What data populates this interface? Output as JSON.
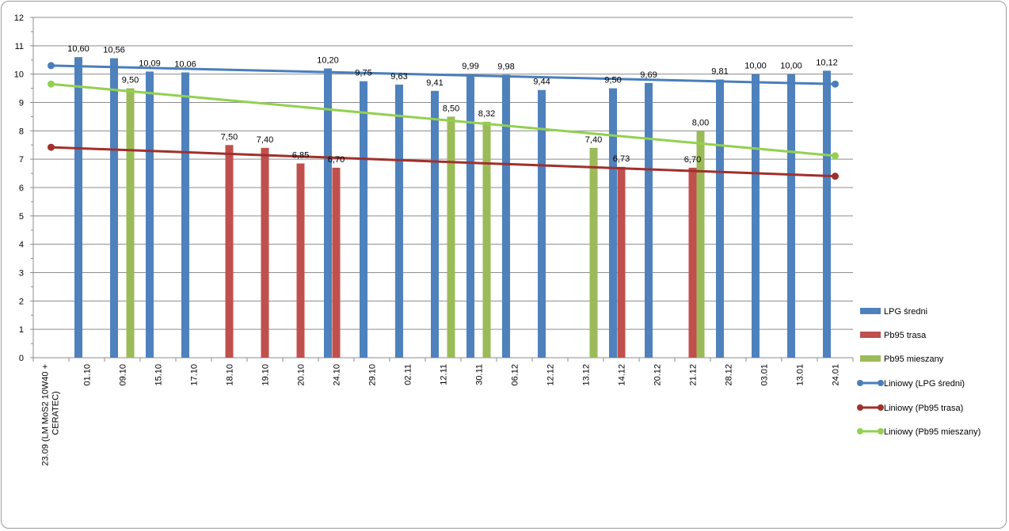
{
  "chart_data": {
    "type": "bar",
    "title": "",
    "xlabel": "",
    "ylabel": "",
    "ylim": [
      0,
      12
    ],
    "yticks": [
      0,
      1,
      2,
      3,
      4,
      5,
      6,
      7,
      8,
      9,
      10,
      11,
      12
    ],
    "grid": true,
    "legend_position": "right",
    "categories": [
      "23.09 (LM MoS2 10W40 + CERATEC)",
      "01.10",
      "09.10",
      "15.10",
      "17.10",
      "18.10",
      "19.10",
      "20.10",
      "24.10",
      "29.10",
      "02.11",
      "12.11",
      "30.11",
      "06.12",
      "12.12",
      "13.12",
      "14.12",
      "20.12",
      "21.12",
      "28.12",
      "03.01",
      "13.01",
      "24.01"
    ],
    "series": [
      {
        "name": "LPG średni",
        "color": "#4f81bd",
        "values": [
          null,
          10.6,
          10.56,
          10.09,
          10.06,
          null,
          null,
          null,
          10.2,
          9.75,
          9.63,
          9.41,
          9.99,
          9.98,
          9.44,
          null,
          9.5,
          9.69,
          null,
          9.81,
          10.0,
          10.0,
          10.12
        ]
      },
      {
        "name": "Pb95 trasa",
        "color": "#c0504d",
        "values": [
          null,
          null,
          null,
          null,
          null,
          7.5,
          7.4,
          6.85,
          6.7,
          null,
          null,
          null,
          null,
          null,
          null,
          null,
          6.73,
          null,
          6.7,
          null,
          null,
          null,
          null
        ]
      },
      {
        "name": "Pb95 mieszany",
        "color": "#9bbb59",
        "values": [
          null,
          null,
          9.5,
          null,
          null,
          null,
          null,
          null,
          null,
          null,
          null,
          8.5,
          8.32,
          null,
          null,
          7.4,
          null,
          null,
          8.0,
          null,
          null,
          null,
          null
        ]
      }
    ],
    "trendlines": [
      {
        "name": "Liniowy (LPG średni)",
        "color": "#4a7ebb",
        "start": 10.3,
        "end": 9.65
      },
      {
        "name": "Liniowy (Pb95 trasa)",
        "color": "#a0302c",
        "start": 7.42,
        "end": 6.4
      },
      {
        "name": "Liniowy (Pb95 mieszany)",
        "color": "#92d050",
        "start": 9.65,
        "end": 7.12
      }
    ]
  }
}
